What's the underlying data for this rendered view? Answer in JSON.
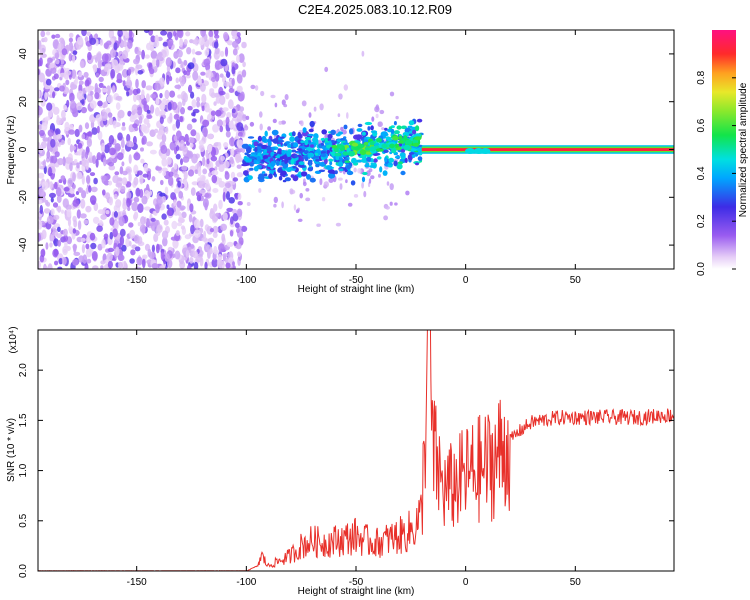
{
  "title": "C2E4.2025.083.10.12.R09",
  "chart_data": [
    {
      "type": "heatmap",
      "xlabel": "Height of straight line (km)",
      "ylabel": "Frequency (Hz)",
      "xlim": [
        -195,
        95
      ],
      "ylim": [
        -50,
        50
      ],
      "xticks": [
        -150,
        -100,
        -50,
        0,
        50
      ],
      "yticks": [
        -40,
        -20,
        0,
        20,
        40
      ],
      "colorbar": {
        "label": "Normalized spectral amplitude",
        "range": [
          0,
          1
        ],
        "ticks": [
          0.0,
          0.2,
          0.4,
          0.6,
          0.8
        ],
        "tick_labels": [
          "0.0",
          "0.2",
          "0.4",
          "0.6",
          "0.8"
        ],
        "colormap": "rainbow (white-violet-blue-cyan-green-yellow-red-magenta)"
      },
      "regions": [
        {
          "x_range": [
            -195,
            -101
          ],
          "freq_range": [
            -50,
            50
          ],
          "amplitude": "0.1-0.3 (noise)"
        },
        {
          "x_range": [
            -101,
            -20
          ],
          "freq_center": 0,
          "freq_spread": 10,
          "amplitude": "0.2-0.6"
        },
        {
          "x_range": [
            -20,
            95
          ],
          "freq_center": 0,
          "freq_spread": 1,
          "amplitude": "0.9-1.0"
        }
      ]
    },
    {
      "type": "line",
      "xlabel": "Height of straight line (km)",
      "ylabel": "SNR (10 * v/v)",
      "y_scale_label": "(x10⁴)",
      "xlim": [
        -195,
        95
      ],
      "ylim": [
        0,
        2.4
      ],
      "xticks": [
        -150,
        -100,
        -50,
        0,
        50
      ],
      "yticks": [
        0.0,
        0.5,
        1.0,
        1.5,
        2.0
      ],
      "ytick_labels": [
        "0.0",
        "0.5",
        "1.0",
        "1.5",
        "2.0"
      ],
      "line_color": "#e8302a",
      "series": [
        {
          "x": [
            -195,
            -150,
            -100,
            -95,
            -93,
            -90,
            -85,
            -80,
            -75,
            -70,
            -65,
            -60,
            -55,
            -50,
            -45,
            -40,
            -35,
            -30,
            -25,
            -20,
            -17,
            -15,
            -10,
            -5,
            0,
            5,
            10,
            15,
            20,
            25,
            30,
            35,
            40,
            45,
            50,
            55,
            60,
            65,
            70,
            75,
            80,
            85,
            90,
            95
          ],
          "values": [
            0.0,
            0.0,
            0.0,
            0.05,
            0.15,
            0.05,
            0.1,
            0.15,
            0.25,
            0.3,
            0.28,
            0.3,
            0.32,
            0.35,
            0.3,
            0.28,
            0.32,
            0.35,
            0.4,
            0.55,
            2.4,
            1.2,
            0.8,
            0.85,
            0.95,
            1.0,
            1.05,
            1.15,
            1.3,
            1.4,
            1.48,
            1.5,
            1.52,
            1.53,
            1.53,
            1.53,
            1.53,
            1.53,
            1.53,
            1.53,
            1.53,
            1.54,
            1.55,
            1.55
          ]
        }
      ]
    }
  ]
}
